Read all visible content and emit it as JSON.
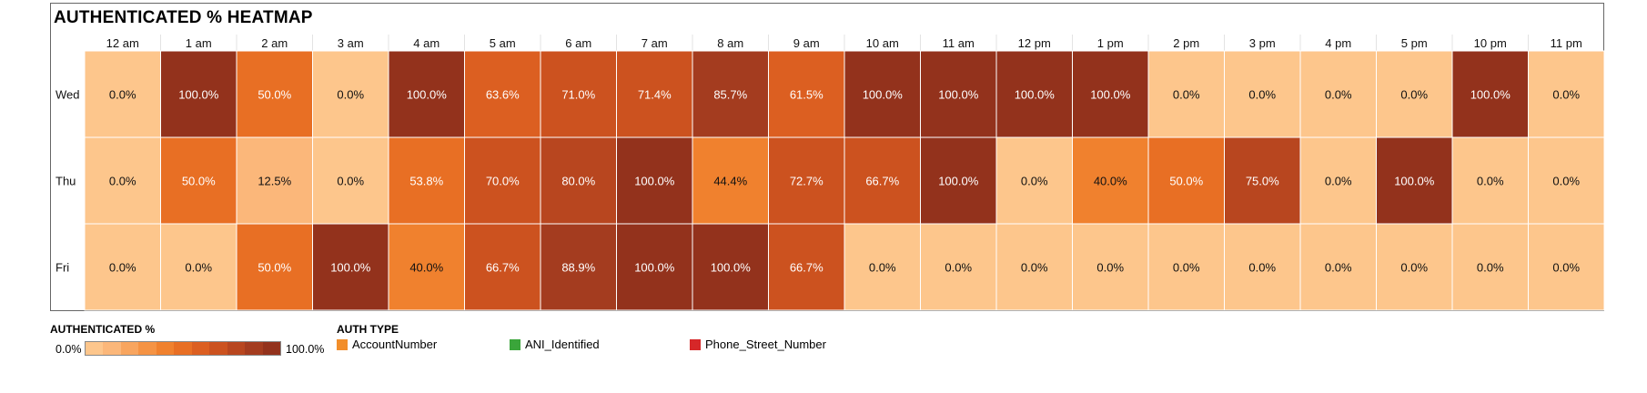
{
  "title": "AUTHENTICATED % HEATMAP",
  "chart_data": {
    "type": "heatmap",
    "title": "AUTHENTICATED % HEATMAP",
    "columns": [
      "12 am",
      "1 am",
      "2 am",
      "3 am",
      "4 am",
      "5 am",
      "6 am",
      "7 am",
      "8 am",
      "9 am",
      "10 am",
      "11 am",
      "12 pm",
      "1 pm",
      "2 pm",
      "3 pm",
      "4 pm",
      "5 pm",
      "10 pm",
      "11 pm"
    ],
    "rows": [
      "Wed",
      "Thu",
      "Fri"
    ],
    "values": [
      [
        0.0,
        100.0,
        50.0,
        0.0,
        100.0,
        63.6,
        71.0,
        71.4,
        85.7,
        61.5,
        100.0,
        100.0,
        100.0,
        100.0,
        0.0,
        0.0,
        0.0,
        0.0,
        100.0,
        0.0
      ],
      [
        0.0,
        50.0,
        12.5,
        0.0,
        53.8,
        70.0,
        80.0,
        100.0,
        44.4,
        72.7,
        66.7,
        100.0,
        0.0,
        40.0,
        50.0,
        75.0,
        0.0,
        100.0,
        0.0,
        0.0
      ],
      [
        0.0,
        0.0,
        50.0,
        100.0,
        40.0,
        66.7,
        88.9,
        100.0,
        100.0,
        66.7,
        0.0,
        0.0,
        0.0,
        0.0,
        0.0,
        0.0,
        0.0,
        0.0,
        0.0,
        0.0
      ]
    ],
    "value_suffix": "%",
    "color_scale": {
      "min": 0.0,
      "max": 100.0,
      "colors": [
        "#fdc68c",
        "#fbb77a",
        "#f8a55f",
        "#f59344",
        "#f0812e",
        "#e86f24",
        "#dc5f21",
        "#cc521f",
        "#b8461f",
        "#a43c1f",
        "#93321c"
      ]
    }
  },
  "legend_color": {
    "title": "AUTHENTICATED %",
    "min_label": "0.0%",
    "max_label": "100.0%"
  },
  "legend_auth": {
    "title": "AUTH TYPE",
    "items": [
      {
        "label": "AccountNumber",
        "color": "#f28e2b"
      },
      {
        "label": "ANI_Identified",
        "color": "#3aa53a"
      },
      {
        "label": "Phone_Street_Number",
        "color": "#d62728"
      }
    ]
  }
}
